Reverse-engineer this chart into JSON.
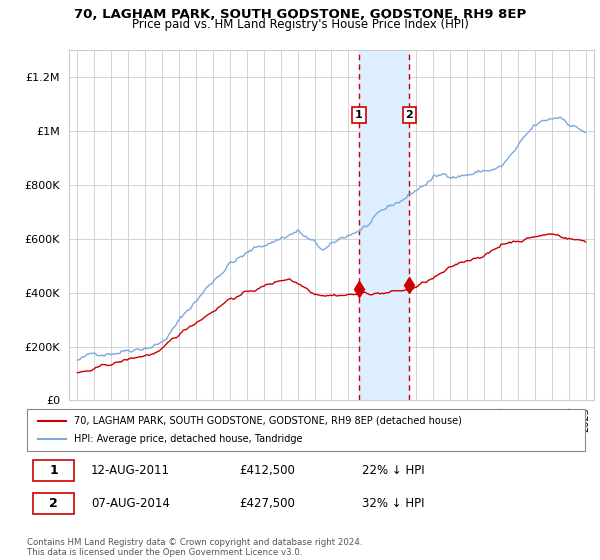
{
  "title": "70, LAGHAM PARK, SOUTH GODSTONE, GODSTONE, RH9 8EP",
  "subtitle": "Price paid vs. HM Land Registry's House Price Index (HPI)",
  "xlim_start": 1994.5,
  "xlim_end": 2025.5,
  "ylim": [
    0,
    1300000
  ],
  "yticks": [
    0,
    200000,
    400000,
    600000,
    800000,
    1000000,
    1200000
  ],
  "sale1_date": 2011.615,
  "sale1_price": 412500,
  "sale1_label": "1",
  "sale2_date": 2014.595,
  "sale2_price": 427500,
  "sale2_label": "2",
  "highlight_color": "#ddeeff",
  "sale_line_color": "#cc0000",
  "hpi_line_color": "#7aaadd",
  "price_line_color": "#cc0000",
  "legend_label_price": "70, LAGHAM PARK, SOUTH GODSTONE, GODSTONE, RH9 8EP (detached house)",
  "legend_label_hpi": "HPI: Average price, detached house, Tandridge",
  "sale1_date_str": "12-AUG-2011",
  "sale1_price_str": "£412,500",
  "sale1_pct_str": "22% ↓ HPI",
  "sale2_date_str": "07-AUG-2014",
  "sale2_price_str": "£427,500",
  "sale2_pct_str": "32% ↓ HPI",
  "footer": "Contains HM Land Registry data © Crown copyright and database right 2024.\nThis data is licensed under the Open Government Licence v3.0."
}
